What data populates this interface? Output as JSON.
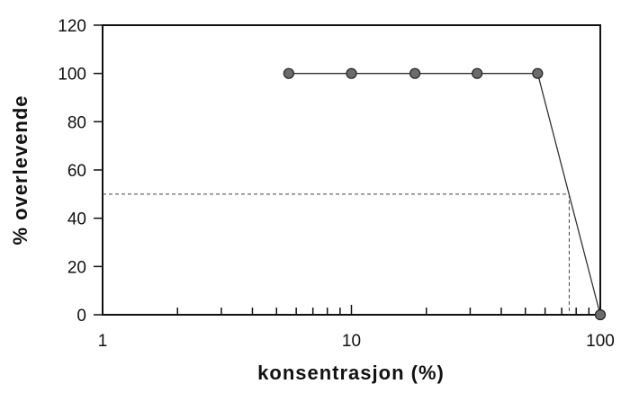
{
  "chart_data": {
    "type": "line",
    "title": "",
    "xlabel": "konsentrasjon (%)",
    "ylabel": "% overlevende",
    "x_scale": "log",
    "xlim": [
      1,
      100
    ],
    "ylim": [
      0,
      120
    ],
    "x_tick_labels": [
      "1",
      "10",
      "100"
    ],
    "y_tick_labels": [
      "0",
      "20",
      "40",
      "60",
      "80",
      "100",
      "120"
    ],
    "grid": false,
    "series": [
      {
        "x": [
          5.6,
          10,
          18,
          32,
          56,
          100
        ],
        "y": [
          100,
          100,
          100,
          100,
          100,
          0
        ],
        "marker_color": "#6b6b6b",
        "line_color": "#333333"
      }
    ],
    "reference_line": {
      "y": 50,
      "x": 75,
      "style": "dashed"
    }
  }
}
